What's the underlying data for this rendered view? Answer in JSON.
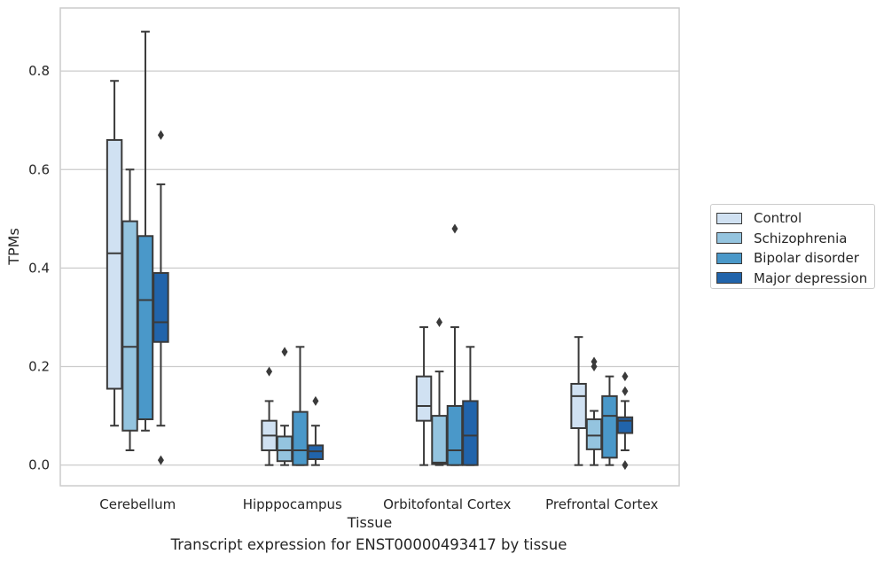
{
  "chart_data": {
    "type": "box",
    "title": "",
    "xlabel": "Tissue",
    "ylabel": "TPMs",
    "caption": "Transcript expression for ENST00000493417 by tissue",
    "categories": [
      "Cerebellum",
      "Hipppocampus",
      "Orbitofontal Cortex",
      "Prefrontal Cortex"
    ],
    "ylim": [
      -0.042,
      0.928
    ],
    "yticks": [
      0.0,
      0.2,
      0.4,
      0.6,
      0.8
    ],
    "ytick_labels": [
      "0.0",
      "0.2",
      "0.4",
      "0.6",
      "0.8"
    ],
    "grid": true,
    "legend_position": "right",
    "series": [
      {
        "name": "Control",
        "color": "#d0e1f2",
        "boxes": [
          {
            "whislo": 0.08,
            "q1": 0.155,
            "med": 0.43,
            "q3": 0.66,
            "whishi": 0.78,
            "fliers": []
          },
          {
            "whislo": 0.0,
            "q1": 0.03,
            "med": 0.06,
            "q3": 0.09,
            "whishi": 0.13,
            "fliers": [
              0.19
            ]
          },
          {
            "whislo": 0.0,
            "q1": 0.09,
            "med": 0.12,
            "q3": 0.18,
            "whishi": 0.28,
            "fliers": []
          },
          {
            "whislo": 0.0,
            "q1": 0.075,
            "med": 0.14,
            "q3": 0.165,
            "whishi": 0.26,
            "fliers": []
          }
        ]
      },
      {
        "name": "Schizophrenia",
        "color": "#94c4df",
        "boxes": [
          {
            "whislo": 0.03,
            "q1": 0.07,
            "med": 0.24,
            "q3": 0.495,
            "whishi": 0.6,
            "fliers": []
          },
          {
            "whislo": 0.0,
            "q1": 0.008,
            "med": 0.03,
            "q3": 0.058,
            "whishi": 0.08,
            "fliers": [
              0.23
            ]
          },
          {
            "whislo": 0.0,
            "q1": 0.002,
            "med": 0.005,
            "q3": 0.1,
            "whishi": 0.19,
            "fliers": [
              0.29
            ]
          },
          {
            "whislo": 0.0,
            "q1": 0.032,
            "med": 0.06,
            "q3": 0.093,
            "whishi": 0.11,
            "fliers": [
              0.2,
              0.21
            ]
          }
        ]
      },
      {
        "name": "Bipolar disorder",
        "color": "#4a98c9",
        "boxes": [
          {
            "whislo": 0.07,
            "q1": 0.093,
            "med": 0.335,
            "q3": 0.465,
            "whishi": 0.88,
            "fliers": []
          },
          {
            "whislo": 0.0,
            "q1": 0.0,
            "med": 0.03,
            "q3": 0.108,
            "whishi": 0.24,
            "fliers": []
          },
          {
            "whislo": 0.0,
            "q1": 0.0,
            "med": 0.03,
            "q3": 0.12,
            "whishi": 0.28,
            "fliers": [
              0.48
            ]
          },
          {
            "whislo": 0.0,
            "q1": 0.015,
            "med": 0.1,
            "q3": 0.14,
            "whishi": 0.18,
            "fliers": []
          }
        ]
      },
      {
        "name": "Major depression",
        "color": "#2164ab",
        "boxes": [
          {
            "whislo": 0.08,
            "q1": 0.25,
            "med": 0.29,
            "q3": 0.39,
            "whishi": 0.57,
            "fliers": [
              0.67,
              0.01
            ]
          },
          {
            "whislo": 0.0,
            "q1": 0.012,
            "med": 0.028,
            "q3": 0.04,
            "whishi": 0.08,
            "fliers": [
              0.13
            ]
          },
          {
            "whislo": 0.0,
            "q1": 0.0,
            "med": 0.06,
            "q3": 0.13,
            "whishi": 0.24,
            "fliers": []
          },
          {
            "whislo": 0.03,
            "q1": 0.065,
            "med": 0.09,
            "q3": 0.097,
            "whishi": 0.13,
            "fliers": [
              0.18,
              0.15,
              0.0
            ]
          }
        ]
      }
    ]
  }
}
